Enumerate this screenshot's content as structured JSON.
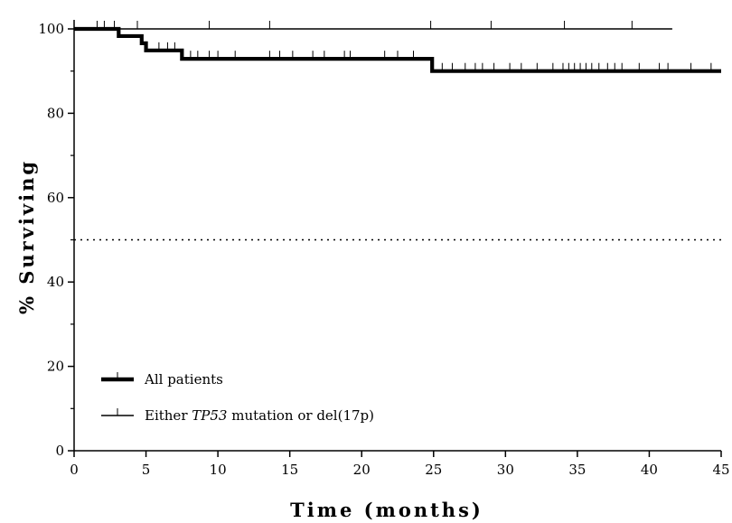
{
  "chart_data": {
    "type": "line",
    "title": "",
    "xlabel": "Time (months)",
    "ylabel": "% Surviving",
    "xlim": [
      0,
      45
    ],
    "ylim": [
      0,
      100
    ],
    "x_ticks": [
      0,
      5,
      10,
      15,
      20,
      25,
      30,
      35,
      40,
      45
    ],
    "y_ticks": [
      0,
      20,
      40,
      60,
      80,
      100
    ],
    "grid": false,
    "reference_line": {
      "y": 50,
      "style": "dotted"
    },
    "legend_position": "bottom-left",
    "legend": [
      {
        "prefix": "All patients",
        "italic": "",
        "suffix": ""
      },
      {
        "prefix": "Either ",
        "italic": "TP53",
        "suffix": " mutation or del(17p)"
      }
    ],
    "series": [
      {
        "name": "All patients",
        "style": "thick",
        "steps": [
          [
            0,
            100
          ],
          [
            3.1,
            98.3
          ],
          [
            4.7,
            96.6
          ],
          [
            5.0,
            94.9
          ],
          [
            7.5,
            92.9
          ],
          [
            24.9,
            90.0
          ],
          [
            45,
            90.0
          ]
        ],
        "censored": [
          5.9,
          6.5,
          7.0,
          8.1,
          8.6,
          9.4,
          10.0,
          11.2,
          13.6,
          14.3,
          15.2,
          16.6,
          17.4,
          18.8,
          19.2,
          21.6,
          22.5,
          23.6,
          25.6,
          26.3,
          27.2,
          27.9,
          28.4,
          29.2,
          30.3,
          31.1,
          32.2,
          33.3,
          34.0,
          34.4,
          34.8,
          35.2,
          35.6,
          36.0,
          36.5,
          37.1,
          37.6,
          38.1,
          39.3,
          40.7,
          41.3,
          42.9,
          44.3
        ]
      },
      {
        "name": "Either TP53 mutation or del(17p)",
        "style": "thin",
        "steps": [
          [
            0,
            100
          ],
          [
            41.6,
            100
          ]
        ],
        "censored": [
          1.6,
          2.1,
          2.8,
          4.4,
          9.4,
          13.6,
          24.8,
          29.0,
          34.1,
          38.8
        ]
      }
    ]
  }
}
